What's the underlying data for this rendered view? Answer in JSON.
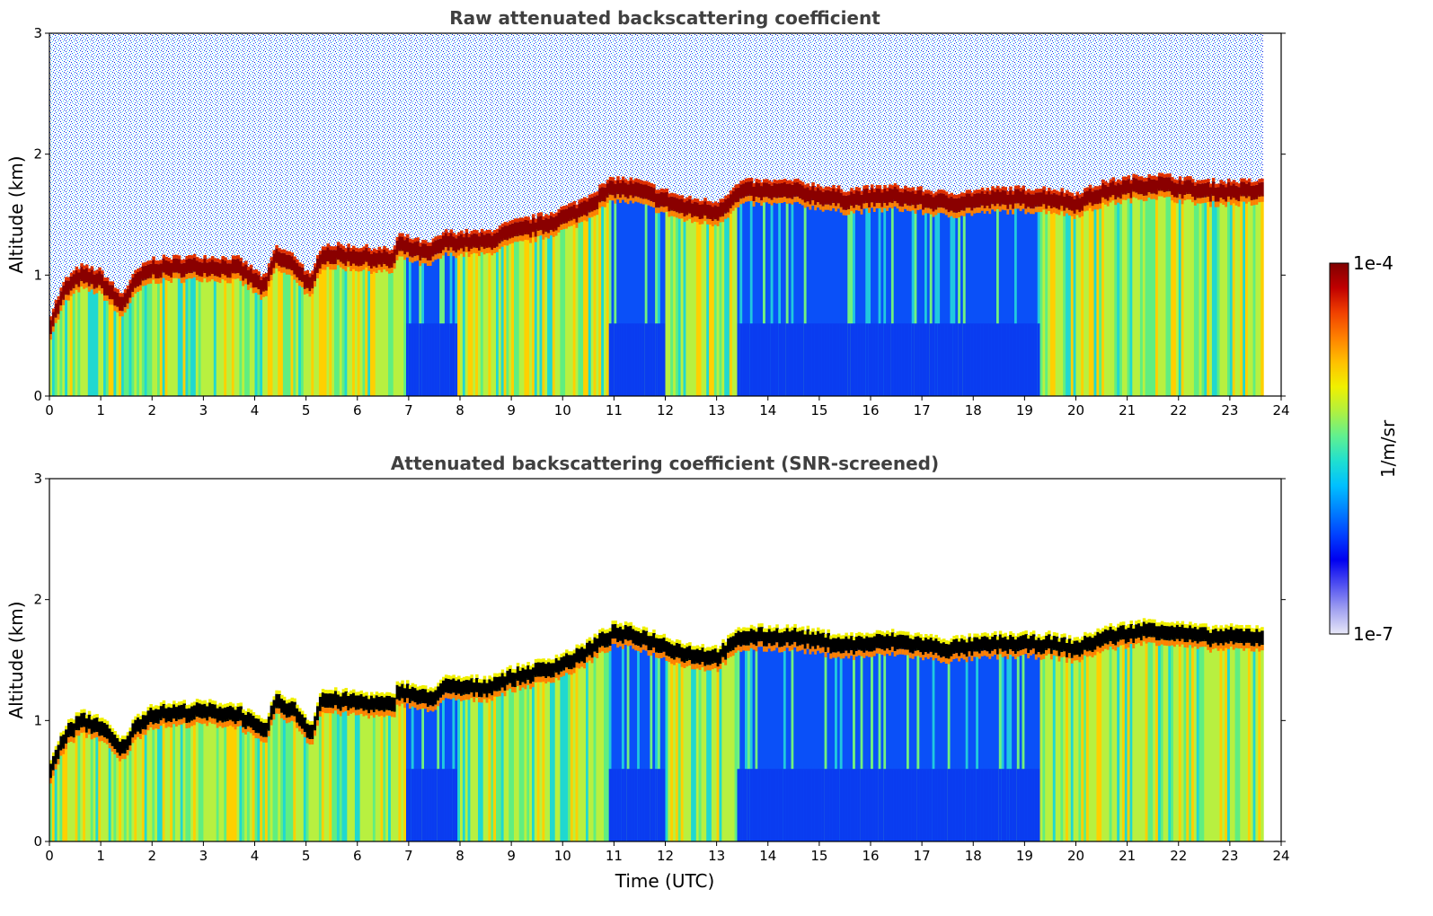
{
  "chart_data": [
    {
      "type": "heatmap",
      "title": "Raw attenuated backscattering coefficient",
      "xlabel": "",
      "ylabel": "Altitude (km)",
      "xlim": [
        0,
        24
      ],
      "ylim": [
        0,
        3
      ],
      "x_ticks": [
        "0",
        "1",
        "2",
        "3",
        "4",
        "5",
        "6",
        "7",
        "8",
        "9",
        "10",
        "11",
        "12",
        "13",
        "14",
        "15",
        "16",
        "17",
        "18",
        "19",
        "20",
        "21",
        "22",
        "23",
        "24"
      ],
      "y_ticks": [
        "0",
        "1",
        "2",
        "3"
      ],
      "data_end_time": 23.65,
      "screened": false,
      "cloud_top_km": [
        [
          0,
          0.6
        ],
        [
          0.3,
          0.9
        ],
        [
          0.6,
          1.02
        ],
        [
          1.0,
          0.98
        ],
        [
          1.4,
          0.78
        ],
        [
          1.7,
          0.98
        ],
        [
          2.0,
          1.08
        ],
        [
          3.0,
          1.1
        ],
        [
          3.7,
          1.08
        ],
        [
          4.2,
          0.92
        ],
        [
          4.4,
          1.18
        ],
        [
          4.8,
          1.1
        ],
        [
          5.1,
          0.92
        ],
        [
          5.3,
          1.2
        ],
        [
          6.0,
          1.18
        ],
        [
          6.7,
          1.15
        ],
        [
          6.8,
          1.28
        ],
        [
          7.4,
          1.2
        ],
        [
          7.7,
          1.3
        ],
        [
          8.5,
          1.3
        ],
        [
          9.0,
          1.38
        ],
        [
          9.7,
          1.45
        ],
        [
          10.3,
          1.55
        ],
        [
          11.0,
          1.75
        ],
        [
          11.5,
          1.72
        ],
        [
          12.4,
          1.58
        ],
        [
          13.0,
          1.55
        ],
        [
          13.5,
          1.72
        ],
        [
          14.5,
          1.72
        ],
        [
          15.5,
          1.65
        ],
        [
          16.5,
          1.68
        ],
        [
          17.5,
          1.62
        ],
        [
          18.5,
          1.66
        ],
        [
          19.5,
          1.66
        ],
        [
          20.0,
          1.62
        ],
        [
          20.6,
          1.72
        ],
        [
          21.5,
          1.78
        ],
        [
          22.5,
          1.72
        ],
        [
          23.6,
          1.72
        ]
      ]
    },
    {
      "type": "heatmap",
      "title": "Attenuated backscattering coefficient (SNR-screened)",
      "xlabel": "Time (UTC)",
      "ylabel": "Altitude (km)",
      "xlim": [
        0,
        24
      ],
      "ylim": [
        0,
        3
      ],
      "x_ticks": [
        "0",
        "1",
        "2",
        "3",
        "4",
        "5",
        "6",
        "7",
        "8",
        "9",
        "10",
        "11",
        "12",
        "13",
        "14",
        "15",
        "16",
        "17",
        "18",
        "19",
        "20",
        "21",
        "22",
        "23",
        "24"
      ],
      "y_ticks": [
        "0",
        "1",
        "2",
        "3"
      ],
      "data_end_time": 23.65,
      "screened": true,
      "cloud_top_km": [
        [
          0,
          0.6
        ],
        [
          0.3,
          0.9
        ],
        [
          0.6,
          1.02
        ],
        [
          1.0,
          0.98
        ],
        [
          1.4,
          0.78
        ],
        [
          1.7,
          0.98
        ],
        [
          2.0,
          1.08
        ],
        [
          3.0,
          1.1
        ],
        [
          3.7,
          1.08
        ],
        [
          4.2,
          0.92
        ],
        [
          4.4,
          1.18
        ],
        [
          4.8,
          1.1
        ],
        [
          5.1,
          0.92
        ],
        [
          5.3,
          1.2
        ],
        [
          6.0,
          1.18
        ],
        [
          6.7,
          1.15
        ],
        [
          6.8,
          1.28
        ],
        [
          7.4,
          1.2
        ],
        [
          7.7,
          1.3
        ],
        [
          8.5,
          1.3
        ],
        [
          9.0,
          1.38
        ],
        [
          9.7,
          1.45
        ],
        [
          10.3,
          1.55
        ],
        [
          11.0,
          1.75
        ],
        [
          11.5,
          1.72
        ],
        [
          12.4,
          1.58
        ],
        [
          13.0,
          1.55
        ],
        [
          13.5,
          1.72
        ],
        [
          14.5,
          1.72
        ],
        [
          15.5,
          1.65
        ],
        [
          16.5,
          1.68
        ],
        [
          17.5,
          1.62
        ],
        [
          18.5,
          1.66
        ],
        [
          19.5,
          1.66
        ],
        [
          20.0,
          1.62
        ],
        [
          20.6,
          1.72
        ],
        [
          21.5,
          1.78
        ],
        [
          22.5,
          1.72
        ],
        [
          23.6,
          1.72
        ]
      ]
    }
  ],
  "colorbar": {
    "label": "1/m/sr",
    "max_label": "1e-4",
    "min_label": "1e-7",
    "colors": [
      "#e8e8f8",
      "#a0a0f0",
      "#5050f0",
      "#0000f0",
      "#0040ff",
      "#0080ff",
      "#00c0ff",
      "#20e0d0",
      "#60f090",
      "#b0f040",
      "#f0f000",
      "#ffc000",
      "#ff8000",
      "#f04000",
      "#c00000",
      "#800000"
    ]
  }
}
